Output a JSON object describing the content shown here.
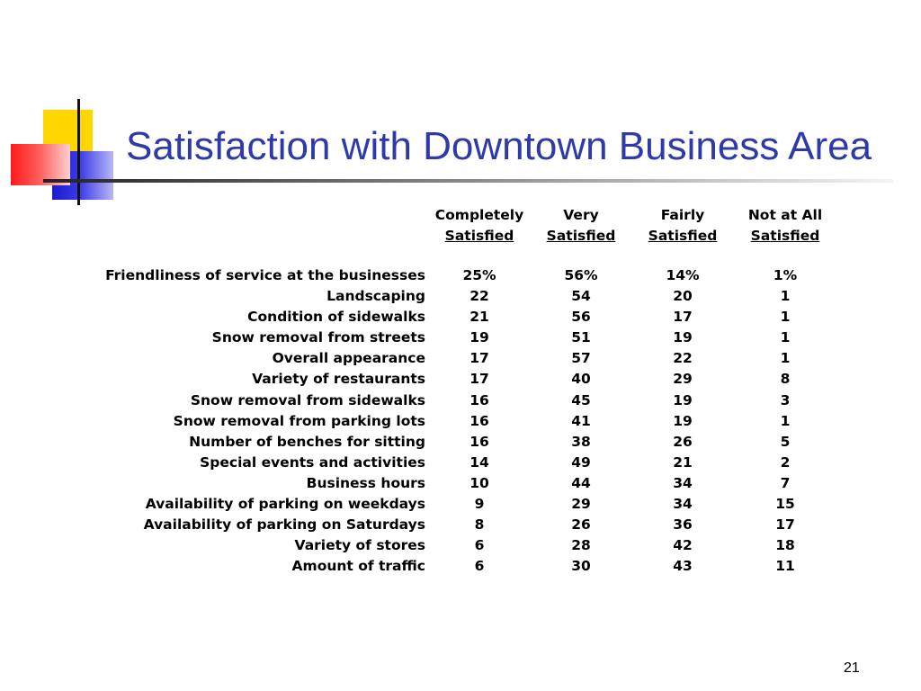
{
  "slide": {
    "title": "Satisfaction with Downtown Business Area",
    "page_number": "21",
    "title_color": "#2e3aa8"
  },
  "table": {
    "columns": [
      {
        "line1": "Completely",
        "line2": "Satisfied"
      },
      {
        "line1": "Very",
        "line2": "Satisfied"
      },
      {
        "line1": "Fairly",
        "line2": "Satisfied"
      },
      {
        "line1": "Not at All",
        "line2": "Satisfied"
      }
    ],
    "rows": [
      {
        "label": "Friendliness of service at the businesses",
        "values": [
          "25%",
          "56%",
          "14%",
          "1%"
        ]
      },
      {
        "label": "Landscaping",
        "values": [
          "22",
          "54",
          "20",
          "1"
        ]
      },
      {
        "label": "Condition of sidewalks",
        "values": [
          "21",
          "56",
          "17",
          "1"
        ]
      },
      {
        "label": "Snow removal from streets",
        "values": [
          "19",
          "51",
          "19",
          "1"
        ]
      },
      {
        "label": "Overall appearance",
        "values": [
          "17",
          "57",
          "22",
          "1"
        ]
      },
      {
        "label": "Variety of restaurants",
        "values": [
          "17",
          "40",
          "29",
          "8"
        ]
      },
      {
        "label": "Snow removal from sidewalks",
        "values": [
          "16",
          "45",
          "19",
          "3"
        ]
      },
      {
        "label": "Snow removal from parking lots",
        "values": [
          "16",
          "41",
          "19",
          "1"
        ]
      },
      {
        "label": "Number of benches for sitting",
        "values": [
          "16",
          "38",
          "26",
          "5"
        ]
      },
      {
        "label": "Special events and activities",
        "values": [
          "14",
          "49",
          "21",
          "2"
        ]
      },
      {
        "label": "Business hours",
        "values": [
          "10",
          "44",
          "34",
          "7"
        ]
      },
      {
        "label": "Availability of parking on weekdays",
        "values": [
          "9",
          "29",
          "34",
          "15"
        ]
      },
      {
        "label": "Availability of parking on Saturdays",
        "values": [
          "8",
          "26",
          "36",
          "17"
        ]
      },
      {
        "label": "Variety of stores",
        "values": [
          "6",
          "28",
          "42",
          "18"
        ]
      },
      {
        "label": "Amount of traffic",
        "values": [
          "6",
          "30",
          "43",
          "11"
        ]
      }
    ]
  }
}
